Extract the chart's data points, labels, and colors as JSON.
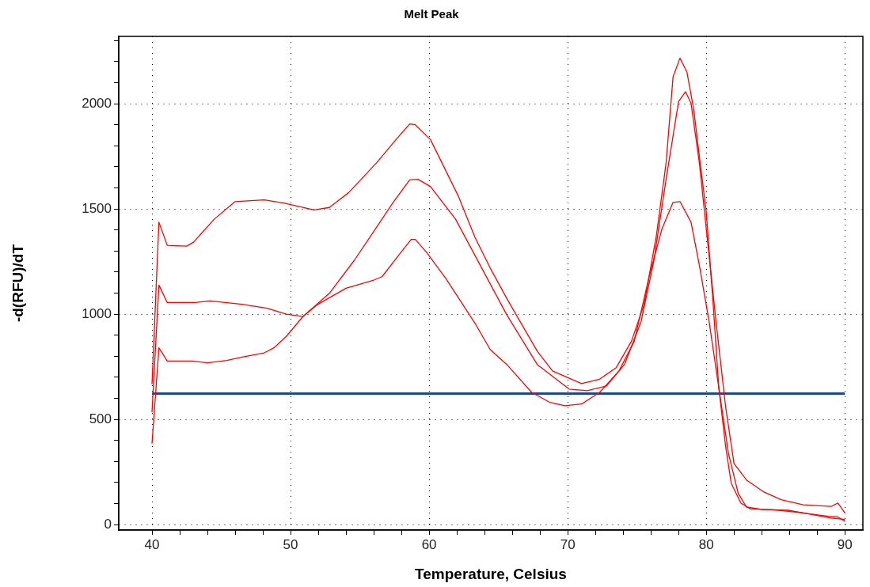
{
  "chart_data": {
    "type": "line",
    "title": "Melt Peak",
    "xlabel": "Temperature, Celsius",
    "ylabel": "-d(RFU)/dT",
    "xlim": [
      37.6,
      91.3
    ],
    "ylim": [
      -26,
      2320
    ],
    "xticks": [
      40,
      {
        "value": 42,
        "label": null
      },
      {
        "value": 44,
        "label": null
      },
      {
        "value": 46,
        "label": null
      },
      {
        "value": 48,
        "label": null
      },
      50,
      {
        "value": 52,
        "label": null
      },
      {
        "value": 54,
        "label": null
      },
      {
        "value": 56,
        "label": null
      },
      {
        "value": 58,
        "label": null
      },
      60,
      {
        "value": 62,
        "label": null
      },
      {
        "value": 64,
        "label": null
      },
      {
        "value": 66,
        "label": null
      },
      {
        "value": 68,
        "label": null
      },
      70,
      {
        "value": 72,
        "label": null
      },
      {
        "value": 74,
        "label": null
      },
      {
        "value": 76,
        "label": null
      },
      {
        "value": 78,
        "label": null
      },
      80,
      {
        "value": 82,
        "label": null
      },
      {
        "value": 84,
        "label": null
      },
      {
        "value": 86,
        "label": null
      },
      {
        "value": 88,
        "label": null
      },
      90
    ],
    "yticks": [
      0,
      {
        "value": 100,
        "label": null
      },
      {
        "value": 200,
        "label": null
      },
      {
        "value": 300,
        "label": null
      },
      {
        "value": 400,
        "label": null
      },
      500,
      {
        "value": 600,
        "label": null
      },
      {
        "value": 700,
        "label": null
      },
      {
        "value": 800,
        "label": null
      },
      {
        "value": 900,
        "label": null
      },
      1000,
      {
        "value": 1100,
        "label": null
      },
      {
        "value": 1200,
        "label": null
      },
      {
        "value": 1300,
        "label": null
      },
      {
        "value": 1400,
        "label": null
      },
      1500,
      {
        "value": 1600,
        "label": null
      },
      {
        "value": 1700,
        "label": null
      },
      {
        "value": 1800,
        "label": null
      },
      {
        "value": 1900,
        "label": null
      },
      2000,
      {
        "value": 2100,
        "label": null
      },
      {
        "value": 2200,
        "label": null
      },
      {
        "value": 2300,
        "label": null
      }
    ],
    "grid": true,
    "legend": false,
    "marker": "none",
    "line_style": "solid",
    "series": [
      {
        "color": "#ff0000",
        "x": [
          40,
          40.5,
          41.1,
          42.5,
          43,
          44.5,
          46,
          48.1,
          49.5,
          51.7,
          52.8,
          54.2,
          56.2,
          57.6,
          58.6,
          59,
          60.1,
          62.1,
          63.3,
          64.4,
          65.6,
          67.8,
          68.9,
          71,
          72.3,
          73.5,
          74.6,
          75.5,
          76.4,
          77.1,
          77.6,
          78.1,
          78.6,
          79.1,
          79.5,
          80,
          80.5,
          80.9,
          81.4,
          81.8,
          82.5,
          83.2,
          84.7,
          87,
          88.8,
          89.5,
          90
        ],
        "values": [
          667,
          1437,
          1327,
          1323,
          1342,
          1452,
          1535,
          1543,
          1528,
          1495,
          1507,
          1578,
          1719,
          1829,
          1904,
          1900,
          1829,
          1562,
          1366,
          1220,
          1075,
          824,
          730,
          670,
          691,
          746,
          871,
          1044,
          1374,
          1719,
          2127,
          2217,
          2151,
          1970,
          1750,
          1484,
          1044,
          652,
          369,
          196,
          102,
          74,
          71,
          55,
          39,
          36,
          16
        ]
      },
      {
        "color": "#ff0000",
        "x": [
          40,
          40.5,
          41.1,
          42.9,
          44,
          45.4,
          46.5,
          48.1,
          48.8,
          49.7,
          50.9,
          52.8,
          54.6,
          56,
          57.4,
          58.6,
          59.2,
          60.1,
          61.9,
          63.3,
          65.6,
          67.8,
          70.1,
          71.4,
          72.8,
          74.1,
          75.3,
          76.2,
          77.1,
          78,
          78.5,
          78.9,
          79.5,
          80,
          80.7,
          81.4,
          82,
          82.9,
          84.1,
          85.4,
          87,
          89,
          89.5,
          90
        ],
        "values": [
          385,
          840,
          777,
          777,
          769,
          780,
          796,
          816,
          840,
          895,
          989,
          1099,
          1256,
          1393,
          1531,
          1638,
          1641,
          1606,
          1452,
          1280,
          997,
          761,
          644,
          636,
          659,
          761,
          966,
          1248,
          1641,
          2010,
          2057,
          2002,
          1719,
          1405,
          966,
          557,
          290,
          212,
          157,
          118,
          94,
          86,
          102,
          55
        ]
      },
      {
        "color": "#ff0000",
        "x": [
          40,
          40.5,
          41.1,
          43.1,
          44.2,
          46.5,
          48.3,
          49.7,
          50.9,
          51.9,
          54,
          56,
          56.6,
          57.8,
          58.7,
          59,
          59.8,
          61.2,
          63.3,
          64.4,
          65.6,
          67.4,
          68.7,
          69.8,
          71,
          72.3,
          73.7,
          74.8,
          75.9,
          76.8,
          77.6,
          78.1,
          78.9,
          79.5,
          80.2,
          80.9,
          81.6,
          82.3,
          82.9,
          84.1,
          85.9,
          87.7,
          89,
          90
        ],
        "values": [
          534,
          1138,
          1055,
          1055,
          1063,
          1047,
          1028,
          1000,
          989,
          1044,
          1123,
          1162,
          1178,
          1280,
          1355,
          1355,
          1295,
          1170,
          958,
          832,
          761,
          628,
          581,
          565,
          573,
          628,
          730,
          871,
          1185,
          1405,
          1531,
          1535,
          1437,
          1232,
          966,
          652,
          338,
          149,
          83,
          71,
          68,
          47,
          31,
          24
        ]
      },
      {
        "color": "#1a4a8a",
        "x": [
          40,
          90
        ],
        "values": [
          623,
          623
        ]
      }
    ]
  }
}
